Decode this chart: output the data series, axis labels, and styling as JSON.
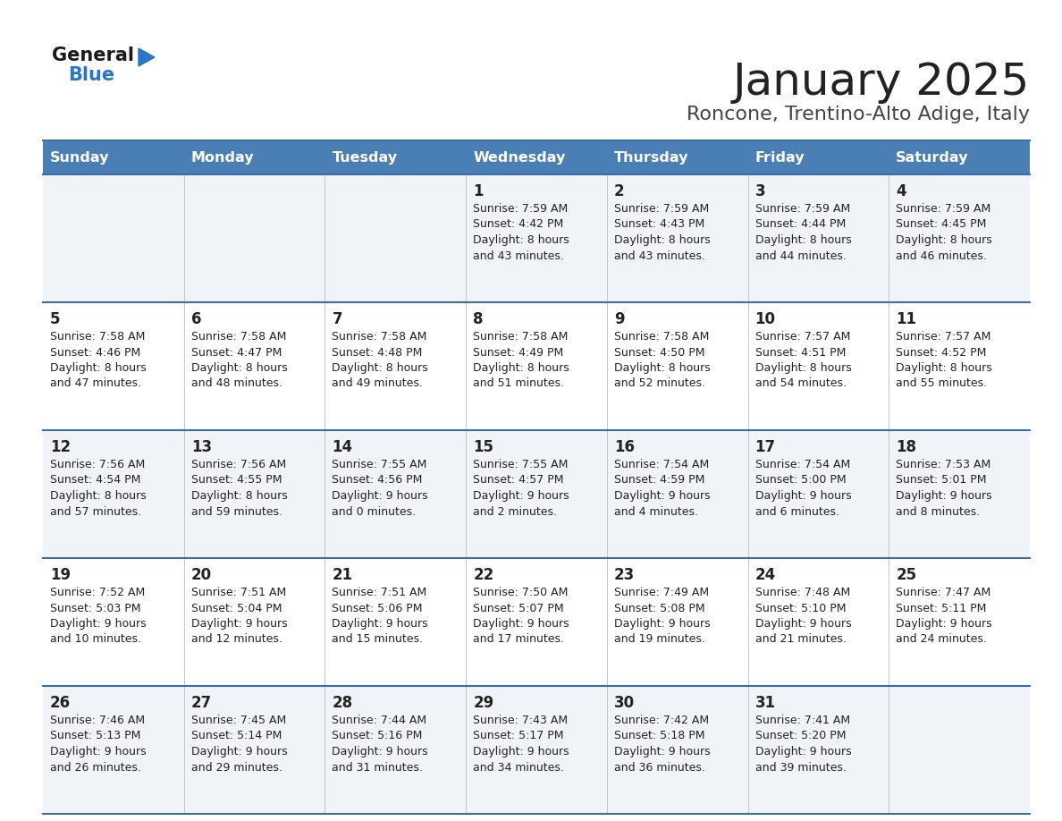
{
  "title": "January 2025",
  "subtitle": "Roncone, Trentino-Alto Adige, Italy",
  "days_of_week": [
    "Sunday",
    "Monday",
    "Tuesday",
    "Wednesday",
    "Thursday",
    "Friday",
    "Saturday"
  ],
  "header_bg": "#4a7fb5",
  "header_text": "#ffffff",
  "row_bg_odd": "#f0f4f8",
  "row_bg_even": "#ffffff",
  "cell_text": "#222222",
  "border_color": "#3a6ea5",
  "title_color": "#222222",
  "subtitle_color": "#444444",
  "logo_general_color": "#1a1a1a",
  "logo_blue_color": "#2a76c6",
  "calendar_data": {
    "week1": {
      "Sunday": null,
      "Monday": null,
      "Tuesday": null,
      "Wednesday": {
        "day": 1,
        "sunrise": "7:59 AM",
        "sunset": "4:42 PM",
        "daylight": "8 hours and 43 minutes."
      },
      "Thursday": {
        "day": 2,
        "sunrise": "7:59 AM",
        "sunset": "4:43 PM",
        "daylight": "8 hours and 43 minutes."
      },
      "Friday": {
        "day": 3,
        "sunrise": "7:59 AM",
        "sunset": "4:44 PM",
        "daylight": "8 hours and 44 minutes."
      },
      "Saturday": {
        "day": 4,
        "sunrise": "7:59 AM",
        "sunset": "4:45 PM",
        "daylight": "8 hours and 46 minutes."
      }
    },
    "week2": {
      "Sunday": {
        "day": 5,
        "sunrise": "7:58 AM",
        "sunset": "4:46 PM",
        "daylight": "8 hours and 47 minutes."
      },
      "Monday": {
        "day": 6,
        "sunrise": "7:58 AM",
        "sunset": "4:47 PM",
        "daylight": "8 hours and 48 minutes."
      },
      "Tuesday": {
        "day": 7,
        "sunrise": "7:58 AM",
        "sunset": "4:48 PM",
        "daylight": "8 hours and 49 minutes."
      },
      "Wednesday": {
        "day": 8,
        "sunrise": "7:58 AM",
        "sunset": "4:49 PM",
        "daylight": "8 hours and 51 minutes."
      },
      "Thursday": {
        "day": 9,
        "sunrise": "7:58 AM",
        "sunset": "4:50 PM",
        "daylight": "8 hours and 52 minutes."
      },
      "Friday": {
        "day": 10,
        "sunrise": "7:57 AM",
        "sunset": "4:51 PM",
        "daylight": "8 hours and 54 minutes."
      },
      "Saturday": {
        "day": 11,
        "sunrise": "7:57 AM",
        "sunset": "4:52 PM",
        "daylight": "8 hours and 55 minutes."
      }
    },
    "week3": {
      "Sunday": {
        "day": 12,
        "sunrise": "7:56 AM",
        "sunset": "4:54 PM",
        "daylight": "8 hours and 57 minutes."
      },
      "Monday": {
        "day": 13,
        "sunrise": "7:56 AM",
        "sunset": "4:55 PM",
        "daylight": "8 hours and 59 minutes."
      },
      "Tuesday": {
        "day": 14,
        "sunrise": "7:55 AM",
        "sunset": "4:56 PM",
        "daylight": "9 hours and 0 minutes."
      },
      "Wednesday": {
        "day": 15,
        "sunrise": "7:55 AM",
        "sunset": "4:57 PM",
        "daylight": "9 hours and 2 minutes."
      },
      "Thursday": {
        "day": 16,
        "sunrise": "7:54 AM",
        "sunset": "4:59 PM",
        "daylight": "9 hours and 4 minutes."
      },
      "Friday": {
        "day": 17,
        "sunrise": "7:54 AM",
        "sunset": "5:00 PM",
        "daylight": "9 hours and 6 minutes."
      },
      "Saturday": {
        "day": 18,
        "sunrise": "7:53 AM",
        "sunset": "5:01 PM",
        "daylight": "9 hours and 8 minutes."
      }
    },
    "week4": {
      "Sunday": {
        "day": 19,
        "sunrise": "7:52 AM",
        "sunset": "5:03 PM",
        "daylight": "9 hours and 10 minutes."
      },
      "Monday": {
        "day": 20,
        "sunrise": "7:51 AM",
        "sunset": "5:04 PM",
        "daylight": "9 hours and 12 minutes."
      },
      "Tuesday": {
        "day": 21,
        "sunrise": "7:51 AM",
        "sunset": "5:06 PM",
        "daylight": "9 hours and 15 minutes."
      },
      "Wednesday": {
        "day": 22,
        "sunrise": "7:50 AM",
        "sunset": "5:07 PM",
        "daylight": "9 hours and 17 minutes."
      },
      "Thursday": {
        "day": 23,
        "sunrise": "7:49 AM",
        "sunset": "5:08 PM",
        "daylight": "9 hours and 19 minutes."
      },
      "Friday": {
        "day": 24,
        "sunrise": "7:48 AM",
        "sunset": "5:10 PM",
        "daylight": "9 hours and 21 minutes."
      },
      "Saturday": {
        "day": 25,
        "sunrise": "7:47 AM",
        "sunset": "5:11 PM",
        "daylight": "9 hours and 24 minutes."
      }
    },
    "week5": {
      "Sunday": {
        "day": 26,
        "sunrise": "7:46 AM",
        "sunset": "5:13 PM",
        "daylight": "9 hours and 26 minutes."
      },
      "Monday": {
        "day": 27,
        "sunrise": "7:45 AM",
        "sunset": "5:14 PM",
        "daylight": "9 hours and 29 minutes."
      },
      "Tuesday": {
        "day": 28,
        "sunrise": "7:44 AM",
        "sunset": "5:16 PM",
        "daylight": "9 hours and 31 minutes."
      },
      "Wednesday": {
        "day": 29,
        "sunrise": "7:43 AM",
        "sunset": "5:17 PM",
        "daylight": "9 hours and 34 minutes."
      },
      "Thursday": {
        "day": 30,
        "sunrise": "7:42 AM",
        "sunset": "5:18 PM",
        "daylight": "9 hours and 36 minutes."
      },
      "Friday": {
        "day": 31,
        "sunrise": "7:41 AM",
        "sunset": "5:20 PM",
        "daylight": "9 hours and 39 minutes."
      },
      "Saturday": null
    }
  }
}
